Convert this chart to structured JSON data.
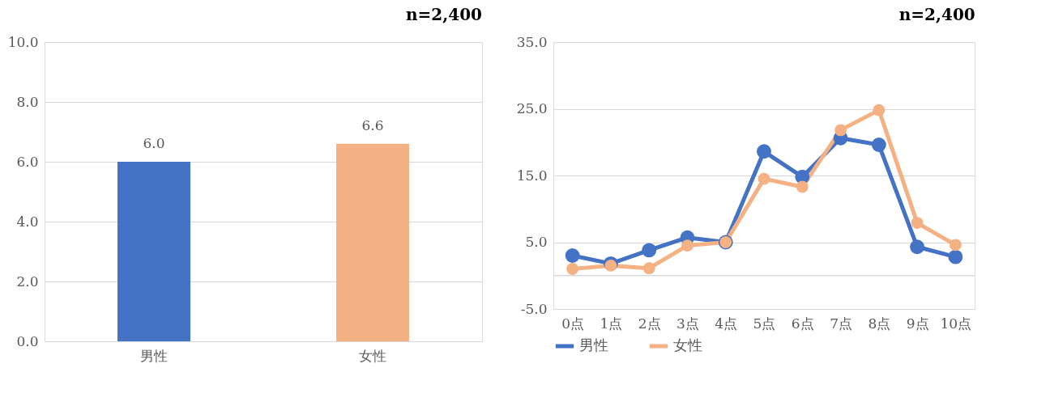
{
  "chart_data": [
    {
      "type": "bar",
      "title": "n=2,400",
      "categories": [
        "男性",
        "女性"
      ],
      "values": [
        6.0,
        6.6
      ],
      "colors": [
        "#4472c4",
        "#f4b183"
      ],
      "value_labels": [
        "6.0",
        "6.6"
      ],
      "ylim": [
        0,
        10
      ],
      "yticks": [
        {
          "value": 0,
          "label": "0.0"
        },
        {
          "value": 2,
          "label": "2.0"
        },
        {
          "value": 4,
          "label": "4.0"
        },
        {
          "value": 6,
          "label": "6.0"
        },
        {
          "value": 8,
          "label": "8.0"
        },
        {
          "value": 10,
          "label": "10.0"
        }
      ],
      "grid": "y"
    },
    {
      "type": "line",
      "title": "n=2,400",
      "categories": [
        "0点",
        "1点",
        "2点",
        "3点",
        "4点",
        "5点",
        "6点",
        "7点",
        "8点",
        "9点",
        "10点"
      ],
      "series": [
        {
          "name": "男性",
          "color": "#4472c4",
          "values": [
            3.0,
            1.8,
            3.8,
            5.7,
            5.0,
            18.6,
            14.8,
            20.6,
            19.6,
            4.3,
            2.8
          ]
        },
        {
          "name": "女性",
          "color": "#f4b183",
          "values": [
            1.0,
            1.5,
            1.1,
            4.5,
            5.0,
            14.5,
            13.3,
            21.8,
            24.8,
            7.9,
            4.6
          ]
        }
      ],
      "ylim": [
        -5,
        35
      ],
      "yticks": [
        {
          "value": -5,
          "label": "-5.0"
        },
        {
          "value": 5,
          "label": "5.0"
        },
        {
          "value": 15,
          "label": "15.0"
        },
        {
          "value": 25,
          "label": "25.0"
        },
        {
          "value": 35,
          "label": "35.0"
        }
      ],
      "ref_lines": [
        {
          "axis": "y",
          "value": 0,
          "color": "#d9d9d9"
        }
      ],
      "grid": "y",
      "legend": "bottom",
      "marker": "circle",
      "line_style": "solid"
    }
  ]
}
